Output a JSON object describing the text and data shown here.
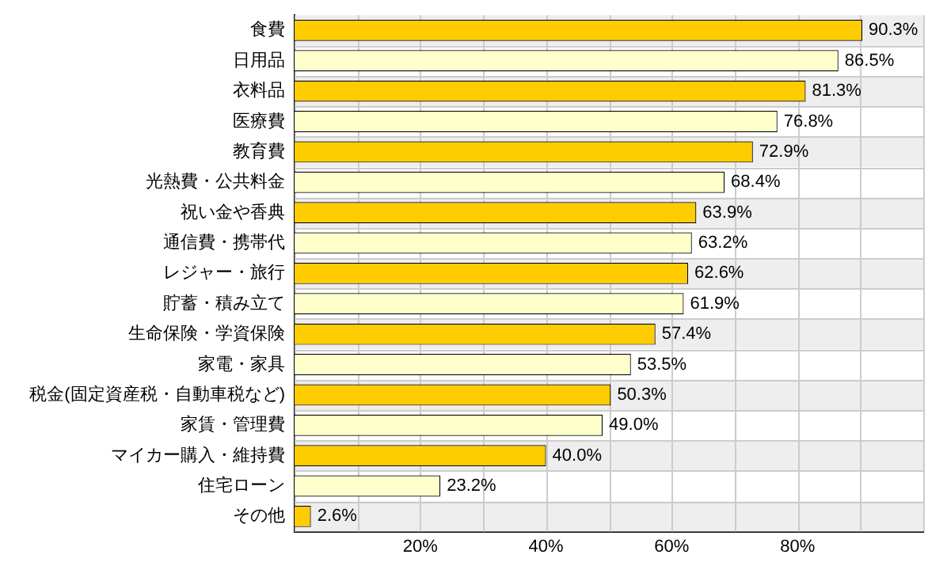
{
  "chart_data": {
    "type": "bar",
    "orientation": "horizontal",
    "categories": [
      "食費",
      "日用品",
      "衣料品",
      "医療費",
      "教育費",
      "光熱費・公共料金",
      "祝い金や香典",
      "通信費・携帯代",
      "レジャー・旅行",
      "貯蓄・積み立て",
      "生命保険・学資保険",
      "家電・家具",
      "税金(固定資産税・自動車税など)",
      "家賃・管理費",
      "マイカー購入・維持費",
      "住宅ローン",
      "その他"
    ],
    "values": [
      90.3,
      86.5,
      81.3,
      76.8,
      72.9,
      68.4,
      63.9,
      63.2,
      62.6,
      61.9,
      57.4,
      53.5,
      50.3,
      49.0,
      40.0,
      23.2,
      2.6
    ],
    "colors": [
      "#ffcc00",
      "#ffffcc",
      "#ffcc00",
      "#ffffcc",
      "#ffcc00",
      "#ffffcc",
      "#ffcc00",
      "#ffffcc",
      "#ffcc00",
      "#ffffcc",
      "#ffcc00",
      "#ffffcc",
      "#ffcc00",
      "#ffffcc",
      "#ffcc00",
      "#ffffcc",
      "#ffcc00"
    ],
    "value_labels": [
      "90.3%",
      "86.5%",
      "81.3%",
      "76.8%",
      "72.9%",
      "68.4%",
      "63.9%",
      "63.2%",
      "62.6%",
      "61.9%",
      "57.4%",
      "53.5%",
      "50.3%",
      "49.0%",
      "40.0%",
      "23.2%",
      "2.6%"
    ],
    "xlim": [
      0,
      100
    ],
    "xticks": [
      {
        "value": 0,
        "label": null
      },
      {
        "value": 10,
        "label": null
      },
      {
        "value": 20,
        "label": "20%"
      },
      {
        "value": 30,
        "label": null
      },
      {
        "value": 40,
        "label": "40%"
      },
      {
        "value": 50,
        "label": null
      },
      {
        "value": 60,
        "label": "60%"
      },
      {
        "value": 70,
        "label": null
      },
      {
        "value": 80,
        "label": "80%"
      },
      {
        "value": 90,
        "label": null
      },
      {
        "value": 100,
        "label": null
      }
    ],
    "grid": true,
    "legend": false
  }
}
